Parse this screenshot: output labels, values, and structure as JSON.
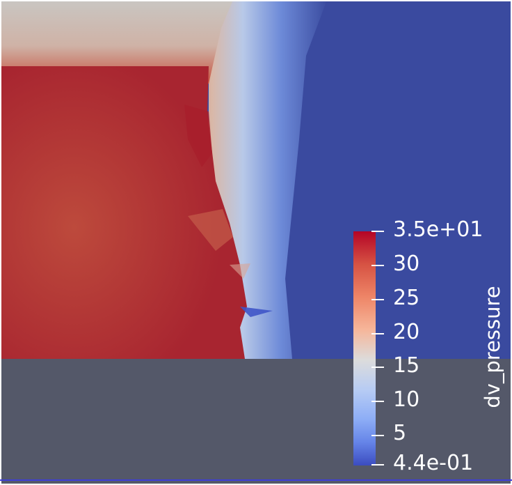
{
  "colorbar": {
    "title": "dv_pressure",
    "ticks": [
      {
        "label": "3.5e+01"
      },
      {
        "label": "30"
      },
      {
        "label": "25"
      },
      {
        "label": "20"
      },
      {
        "label": "15"
      },
      {
        "label": "10"
      },
      {
        "label": "5"
      },
      {
        "label": "4.4e-01"
      }
    ],
    "range": [
      0.44,
      35
    ],
    "colormap": [
      "#3b4cc0",
      "#dcdcdc",
      "#b40426"
    ]
  },
  "colors": {
    "background": "#545869",
    "low": "#3a4a9f",
    "high": "#b52d2e",
    "mid": "#c8c3bf"
  }
}
